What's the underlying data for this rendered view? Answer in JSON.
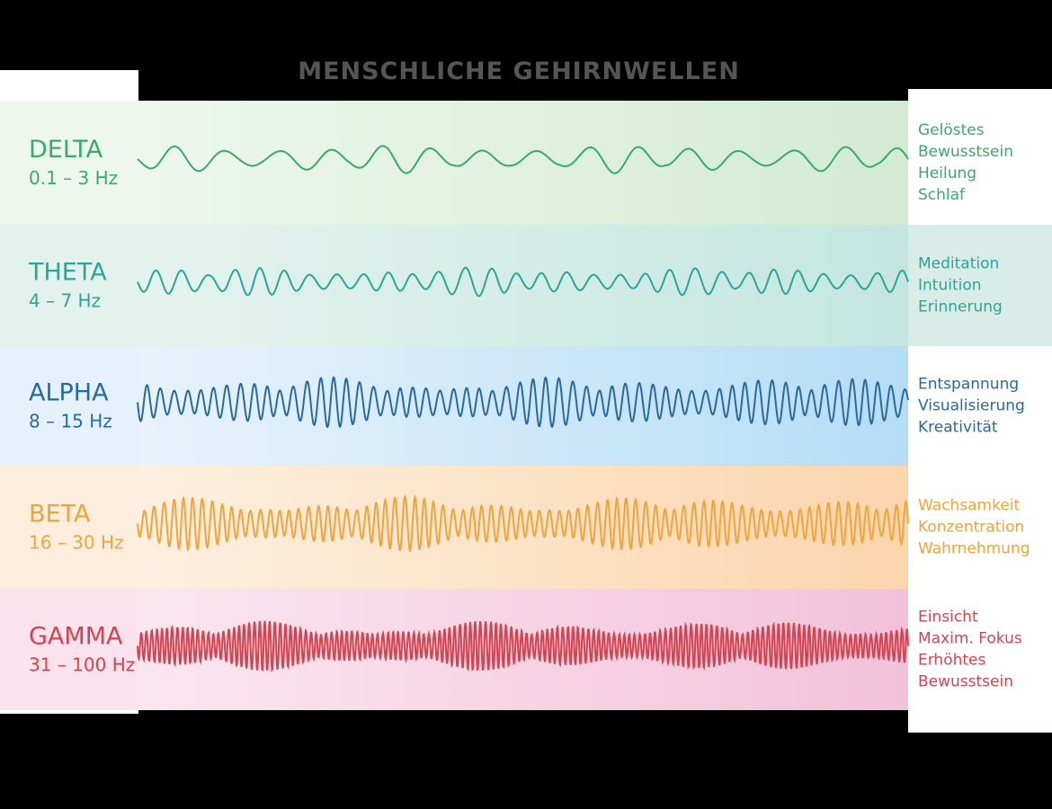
{
  "title": "MENSCHLICHE GEHIRNWELLEN",
  "bands": [
    {
      "name": "DELTA",
      "range": "0.1 – 3 Hz",
      "effects": [
        "Gelöstes",
        "Bewusstsein",
        "Heilung",
        "Schlaf"
      ]
    },
    {
      "name": "THETA",
      "range": "4 – 7 Hz",
      "effects": [
        "Meditation",
        "Intuition",
        "Erinnerung"
      ]
    },
    {
      "name": "ALPHA",
      "range": "8 – 15 Hz",
      "effects": [
        "Entspannung",
        "Visualisierung",
        "Kreativität"
      ]
    },
    {
      "name": "BETA",
      "range": "16 – 30 Hz",
      "effects": [
        "Wachsamkeit",
        "Konzentration",
        "Wahrnehmung"
      ]
    },
    {
      "name": "GAMMA",
      "range": "31 – 100 Hz",
      "effects": [
        "Einsicht",
        "Maxim. Fokus",
        "Erhöhtes",
        "Bewusstsein"
      ]
    }
  ]
}
